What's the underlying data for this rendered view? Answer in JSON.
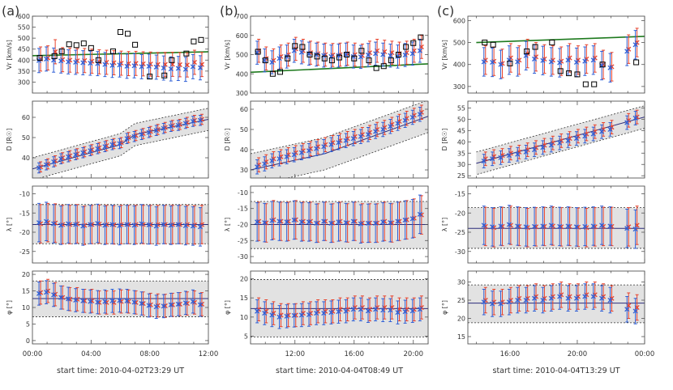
{
  "figure": {
    "marker_colors": {
      "red": "#e8412a",
      "blue": "#2f5fd6",
      "box": "#000000",
      "green": "#1e7a1e",
      "shade": "#e2e2e2"
    }
  },
  "chart_data": [
    {
      "panel_label": "(a)",
      "type": "scatter",
      "xlabel": "start time: 2010-04-02T23:29 UT",
      "x_ticks": [
        "00:00",
        "04:00",
        "08:00",
        "12:00"
      ],
      "xlim_hours": [
        0,
        12
      ],
      "x": [
        0.5,
        1.0,
        1.5,
        2.0,
        2.5,
        3.0,
        3.5,
        4.0,
        4.5,
        5.0,
        5.5,
        6.0,
        6.5,
        7.0,
        7.5,
        8.0,
        8.5,
        9.0,
        9.5,
        10.0,
        10.5,
        11.0,
        11.5
      ],
      "rows": [
        {
          "name": "vr",
          "ylabel": "Vr [km/s]",
          "ylim": [
            250,
            600
          ],
          "ticks": [
            300,
            350,
            400,
            450,
            500,
            550,
            600
          ],
          "red": [
            405,
            410,
            438,
            402,
            400,
            397,
            398,
            395,
            392,
            390,
            388,
            386,
            384,
            385,
            383,
            382,
            380,
            380,
            381,
            379,
            378,
            390,
            380
          ],
          "blue": [
            398,
            405,
            400,
            396,
            392,
            390,
            388,
            386,
            384,
            380,
            376,
            378,
            372,
            374,
            370,
            372,
            368,
            364,
            360,
            362,
            358,
            370,
            365
          ],
          "err": 55,
          "box_x": [
            0.5,
            1.5,
            2.0,
            2.5,
            3.0,
            3.5,
            4.0,
            4.5,
            5.5,
            6.0,
            6.5,
            7.0,
            8.0,
            9.0,
            9.5,
            10.5,
            11.0,
            11.5
          ],
          "box": [
            410,
            418,
            440,
            472,
            468,
            476,
            455,
            400,
            440,
            528,
            520,
            470,
            325,
            330,
            400,
            430,
            485,
            492
          ],
          "green": [
            [
              0.0,
              420
            ],
            [
              12.0,
              438
            ]
          ]
        },
        {
          "name": "d",
          "ylabel": "D [R☉]",
          "ylim": [
            30,
            68
          ],
          "ticks": [
            40,
            50,
            60
          ],
          "red": [
            35.5,
            37.0,
            38.5,
            40.0,
            41.0,
            42.0,
            43.0,
            44.0,
            45.0,
            46.0,
            47.0,
            47.5,
            50.0,
            51.0,
            52.0,
            53.0,
            54.0,
            55.0,
            56.0,
            56.5,
            57.5,
            58.5,
            59.0
          ],
          "blue": [
            35.0,
            36.5,
            38.0,
            39.5,
            40.5,
            41.5,
            42.5,
            43.5,
            44.5,
            45.5,
            46.5,
            47.0,
            49.5,
            50.5,
            51.5,
            52.5,
            53.5,
            54.5,
            55.5,
            56.0,
            57.0,
            58.0,
            58.5
          ],
          "err": 2.5,
          "fit_x": [
            0.0,
            6.0,
            7.0,
            12.0
          ],
          "fit": [
            34.5,
            46.5,
            51.5,
            59.0
          ],
          "band": 5.5
        },
        {
          "name": "lambda",
          "ylabel": "λ [°]",
          "ylim": [
            -28,
            -8
          ],
          "ticks": [
            -25,
            -20,
            -15,
            -10
          ],
          "red": [
            -17.8,
            -17.5,
            -17.6,
            -18.0,
            -18.0,
            -17.8,
            -18.2,
            -18.0,
            -17.9,
            -18.0,
            -18.1,
            -18.0,
            -18.0,
            -18.0,
            -18.0,
            -18.0,
            -18.0,
            -18.0,
            -18.0,
            -18.0,
            -18.0,
            -18.1,
            -18.0
          ],
          "blue": [
            -17.5,
            -17.2,
            -17.8,
            -18.2,
            -17.8,
            -18.0,
            -18.4,
            -18.0,
            -17.7,
            -18.2,
            -18.0,
            -18.3,
            -18.0,
            -18.2,
            -17.8,
            -18.1,
            -18.4,
            -18.0,
            -18.2,
            -18.0,
            -18.3,
            -18.4,
            -18.6
          ],
          "err": 5.0,
          "fit": -18.0,
          "band": [
            -23.0,
            -12.8
          ]
        },
        {
          "name": "phi",
          "ylabel": "φ [°]",
          "ylim": [
            -1,
            21
          ],
          "ticks": [
            0,
            5,
            10,
            15,
            20
          ],
          "red": [
            14.5,
            15.0,
            14.0,
            13.0,
            12.5,
            12.5,
            12.0,
            12.0,
            11.5,
            11.5,
            11.5,
            11.8,
            11.8,
            11.5,
            11.2,
            10.8,
            10.6,
            10.5,
            10.8,
            11.0,
            11.2,
            11.5,
            11.0
          ],
          "blue": [
            14.2,
            14.6,
            13.8,
            13.0,
            12.6,
            12.2,
            12.0,
            11.8,
            11.6,
            11.8,
            12.0,
            12.1,
            12.0,
            11.6,
            11.2,
            10.6,
            10.2,
            10.4,
            10.8,
            11.0,
            11.4,
            11.8,
            10.8
          ],
          "err": 3.5,
          "fit": 12.7,
          "band": [
            7.2,
            18.0
          ]
        }
      ]
    },
    {
      "panel_label": "(b)",
      "type": "scatter",
      "xlabel": "start time: 2010-04-04T08:49 UT",
      "x_ticks": [
        "12:00",
        "16:00",
        "20:00"
      ],
      "xlim_hours": [
        9,
        21
      ],
      "tick_hours": [
        12,
        16,
        20
      ],
      "x": [
        9.5,
        10.0,
        10.5,
        11.0,
        11.5,
        12.0,
        12.5,
        13.0,
        13.5,
        14.0,
        14.5,
        15.0,
        15.5,
        16.0,
        16.5,
        17.0,
        17.5,
        18.0,
        18.5,
        19.0,
        19.5,
        20.0,
        20.5
      ],
      "rows": [
        {
          "name": "vr",
          "ylabel": "Vr [km/s]",
          "ylim": [
            300,
            700
          ],
          "ticks": [
            300,
            400,
            500,
            600,
            700
          ],
          "red": [
            520,
            480,
            470,
            490,
            500,
            530,
            520,
            510,
            505,
            500,
            498,
            500,
            505,
            500,
            495,
            510,
            520,
            515,
            510,
            505,
            510,
            520,
            540
          ],
          "blue": [
            510,
            470,
            460,
            480,
            490,
            520,
            512,
            505,
            500,
            495,
            490,
            495,
            500,
            490,
            488,
            498,
            505,
            500,
            495,
            490,
            498,
            505,
            520
          ],
          "err": 60,
          "box_x": [
            9.5,
            10.0,
            10.5,
            11.0,
            11.5,
            12.0,
            12.5,
            13.0,
            13.5,
            14.0,
            14.5,
            15.0,
            15.5,
            16.0,
            16.5,
            17.0,
            17.5,
            18.0,
            18.5,
            19.0,
            19.5,
            20.0,
            20.5
          ],
          "box": [
            515,
            470,
            400,
            410,
            480,
            545,
            540,
            500,
            490,
            480,
            470,
            485,
            500,
            480,
            520,
            470,
            430,
            440,
            470,
            500,
            540,
            560,
            590
          ],
          "green": [
            [
              9.0,
              408
            ],
            [
              21.0,
              452
            ]
          ]
        },
        {
          "name": "d",
          "ylabel": "D [R☉]",
          "ylim": [
            26,
            64
          ],
          "ticks": [
            30,
            40,
            50,
            60
          ],
          "red": [
            32.5,
            34.0,
            35.5,
            36.5,
            37.5,
            38.5,
            39.5,
            40.5,
            41.5,
            42.5,
            43.5,
            44.5,
            45.5,
            46.5,
            47.5,
            48.5,
            50.0,
            51.0,
            52.5,
            54.0,
            55.5,
            57.0,
            58.5
          ],
          "blue": [
            31.5,
            33.0,
            34.5,
            35.5,
            36.5,
            37.5,
            38.5,
            39.5,
            40.5,
            41.5,
            42.5,
            43.5,
            44.5,
            45.5,
            46.5,
            47.5,
            49.0,
            50.0,
            51.5,
            53.0,
            54.5,
            56.0,
            57.5
          ],
          "err": 3.5,
          "fit_x": [
            9.0,
            14.0,
            21.0
          ],
          "fit": [
            30.0,
            38.0,
            56.5
          ],
          "band": 8.0
        },
        {
          "name": "lambda",
          "ylabel": "λ [°]",
          "ylim": [
            -32,
            -8
          ],
          "ticks": [
            -30,
            -25,
            -20,
            -15,
            -10
          ],
          "red": [
            -19.0,
            -19.5,
            -18.5,
            -19.0,
            -19.0,
            -18.5,
            -19.0,
            -19.0,
            -19.5,
            -19.0,
            -19.5,
            -19.0,
            -19.5,
            -19.0,
            -19.5,
            -19.5,
            -19.5,
            -19.0,
            -19.5,
            -19.0,
            -18.5,
            -18.0,
            -17.0
          ],
          "blue": [
            -19.2,
            -19.4,
            -18.8,
            -19.0,
            -19.2,
            -18.6,
            -19.2,
            -19.2,
            -19.6,
            -19.0,
            -19.6,
            -19.2,
            -19.4,
            -19.0,
            -19.8,
            -19.6,
            -19.6,
            -19.2,
            -19.4,
            -19.0,
            -18.6,
            -18.2,
            -16.8
          ],
          "err": 6.0,
          "fit": -20.0,
          "band": [
            -27.5,
            -12.8
          ]
        },
        {
          "name": "phi",
          "ylabel": "φ [°]",
          "ylim": [
            3,
            22
          ],
          "ticks": [
            5,
            10,
            15,
            20
          ],
          "red": [
            12.0,
            11.5,
            11.0,
            10.5,
            10.5,
            10.5,
            11.0,
            11.0,
            11.5,
            11.5,
            11.5,
            12.0,
            12.0,
            12.5,
            12.5,
            12.0,
            12.5,
            12.5,
            12.5,
            12.0,
            12.0,
            12.0,
            12.5
          ],
          "blue": [
            11.5,
            11.0,
            10.5,
            10.0,
            10.2,
            10.4,
            10.5,
            10.6,
            11.0,
            11.0,
            11.2,
            11.4,
            11.5,
            12.0,
            12.0,
            11.6,
            12.0,
            11.8,
            11.8,
            11.2,
            11.4,
            11.6,
            12.0
          ],
          "err": 3.0,
          "fit": 12.2,
          "band": [
            4.8,
            19.8
          ]
        }
      ]
    },
    {
      "panel_label": "(c)",
      "type": "scatter",
      "xlabel": "start time: 2010-04-04T13:29 UT",
      "x_ticks": [
        "16:00",
        "20:00",
        "00:00"
      ],
      "xlim_hours": [
        13.5,
        24
      ],
      "tick_hours": [
        16,
        20,
        24
      ],
      "x": [
        14.5,
        15.0,
        15.5,
        16.0,
        16.5,
        17.0,
        17.5,
        18.0,
        18.5,
        19.0,
        19.5,
        20.0,
        20.5,
        21.0,
        21.5,
        22.0,
        23.0,
        23.5
      ],
      "rows": [
        {
          "name": "vr",
          "ylabel": "Vr [km/s]",
          "ylim": [
            270,
            620
          ],
          "ticks": [
            300,
            400,
            500,
            600
          ],
          "red": [
            420,
            415,
            405,
            430,
            420,
            450,
            435,
            425,
            420,
            415,
            430,
            420,
            425,
            430,
            400,
            390,
            470,
            500
          ],
          "blue": [
            412,
            410,
            400,
            420,
            412,
            440,
            425,
            418,
            412,
            408,
            420,
            410,
            415,
            420,
            395,
            385,
            460,
            490
          ],
          "err": 65,
          "box_x": [
            14.5,
            15.0,
            16.0,
            17.0,
            17.5,
            18.5,
            19.0,
            19.5,
            20.0,
            20.5,
            21.0,
            21.5,
            23.5
          ],
          "box": [
            500,
            490,
            405,
            460,
            480,
            500,
            370,
            360,
            355,
            310,
            310,
            400,
            410
          ],
          "green": [
            [
              14.0,
              500
            ],
            [
              24.0,
              528
            ]
          ]
        },
        {
          "name": "d",
          "ylabel": "D [R☉]",
          "ylim": [
            24,
            58
          ],
          "ticks": [
            25,
            30,
            35,
            40,
            45,
            50,
            55
          ],
          "red": [
            32.5,
            33.5,
            34.0,
            35.0,
            35.5,
            36.5,
            37.5,
            38.5,
            39.5,
            40.5,
            41.5,
            42.5,
            43.5,
            44.5,
            45.5,
            46.5,
            49.5,
            51.0
          ],
          "blue": [
            31.5,
            32.5,
            33.0,
            34.0,
            34.5,
            35.5,
            36.5,
            37.5,
            38.5,
            39.5,
            40.5,
            41.5,
            42.5,
            43.5,
            44.5,
            45.5,
            48.5,
            50.5
          ],
          "err": 3.0,
          "fit_x": [
            14.0,
            24.0
          ],
          "fit": [
            30.5,
            51.0
          ],
          "band": 5.0
        },
        {
          "name": "lambda",
          "ylabel": "λ [°]",
          "ylim": [
            -33,
            -13
          ],
          "ticks": [
            -30,
            -25,
            -20,
            -15
          ],
          "red": [
            -23.5,
            -23.8,
            -23.5,
            -23.2,
            -23.5,
            -23.8,
            -23.6,
            -23.5,
            -23.4,
            -23.6,
            -23.5,
            -23.7,
            -23.8,
            -23.6,
            -23.5,
            -23.5,
            -23.6,
            -23.2
          ],
          "blue": [
            -23.2,
            -23.6,
            -23.4,
            -23.0,
            -23.4,
            -23.6,
            -23.5,
            -23.4,
            -23.2,
            -23.5,
            -23.4,
            -23.6,
            -23.5,
            -23.4,
            -23.2,
            -23.4,
            -24.0,
            -24.2
          ],
          "err": 5.0,
          "fit": -24.0,
          "band": [
            -29.2,
            -18.6
          ]
        },
        {
          "name": "phi",
          "ylabel": "φ [°]",
          "ylim": [
            13,
            33
          ],
          "ticks": [
            15,
            20,
            25,
            30
          ],
          "red": [
            25.0,
            24.5,
            24.5,
            25.0,
            25.5,
            25.5,
            26.0,
            25.5,
            26.0,
            26.5,
            26.0,
            26.0,
            26.5,
            26.5,
            26.0,
            25.5,
            23.5,
            23.0
          ],
          "blue": [
            24.5,
            24.0,
            24.0,
            24.5,
            25.0,
            25.0,
            25.5,
            25.0,
            25.5,
            26.0,
            25.5,
            25.5,
            26.0,
            26.0,
            25.5,
            25.0,
            22.5,
            22.0
          ],
          "err": 3.5,
          "fit": 24.2,
          "band": [
            18.8,
            29.2
          ]
        }
      ]
    }
  ]
}
